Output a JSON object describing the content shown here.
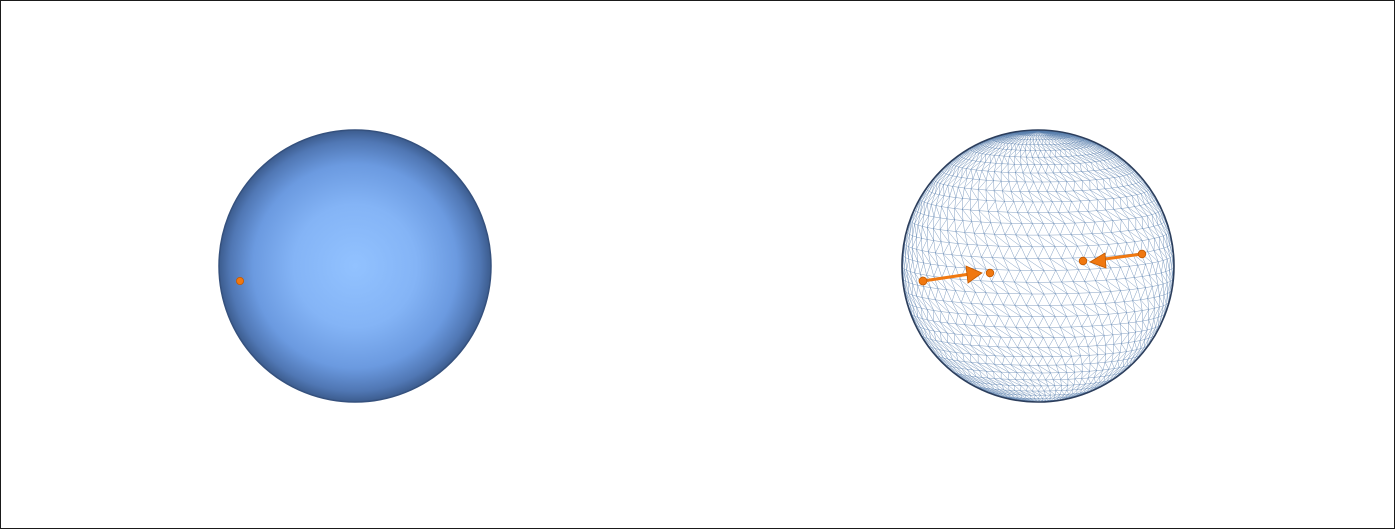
{
  "figure": {
    "panels": [
      {
        "name": "solid-sphere",
        "style": "shaded-solid"
      },
      {
        "name": "wireframe-sphere",
        "style": "triangulated-mesh"
      }
    ],
    "colors": {
      "sphere_fill_center": "#8fc0ff",
      "sphere_fill_mid": "#6a9de6",
      "sphere_fill_edge": "#3e5f94",
      "sphere_outline": "#2c3e5c",
      "mesh_line": "#5a7fae",
      "marker": "#f07810",
      "marker_dark": "#c45a00",
      "frame_border": "#1a1a1a"
    },
    "left_panel": {
      "marker_count": 1
    },
    "right_panel": {
      "arrow_count": 2,
      "arrows": [
        {
          "name": "left-arrow",
          "direction": "toward-center"
        },
        {
          "name": "right-arrow",
          "direction": "toward-center"
        }
      ]
    }
  }
}
